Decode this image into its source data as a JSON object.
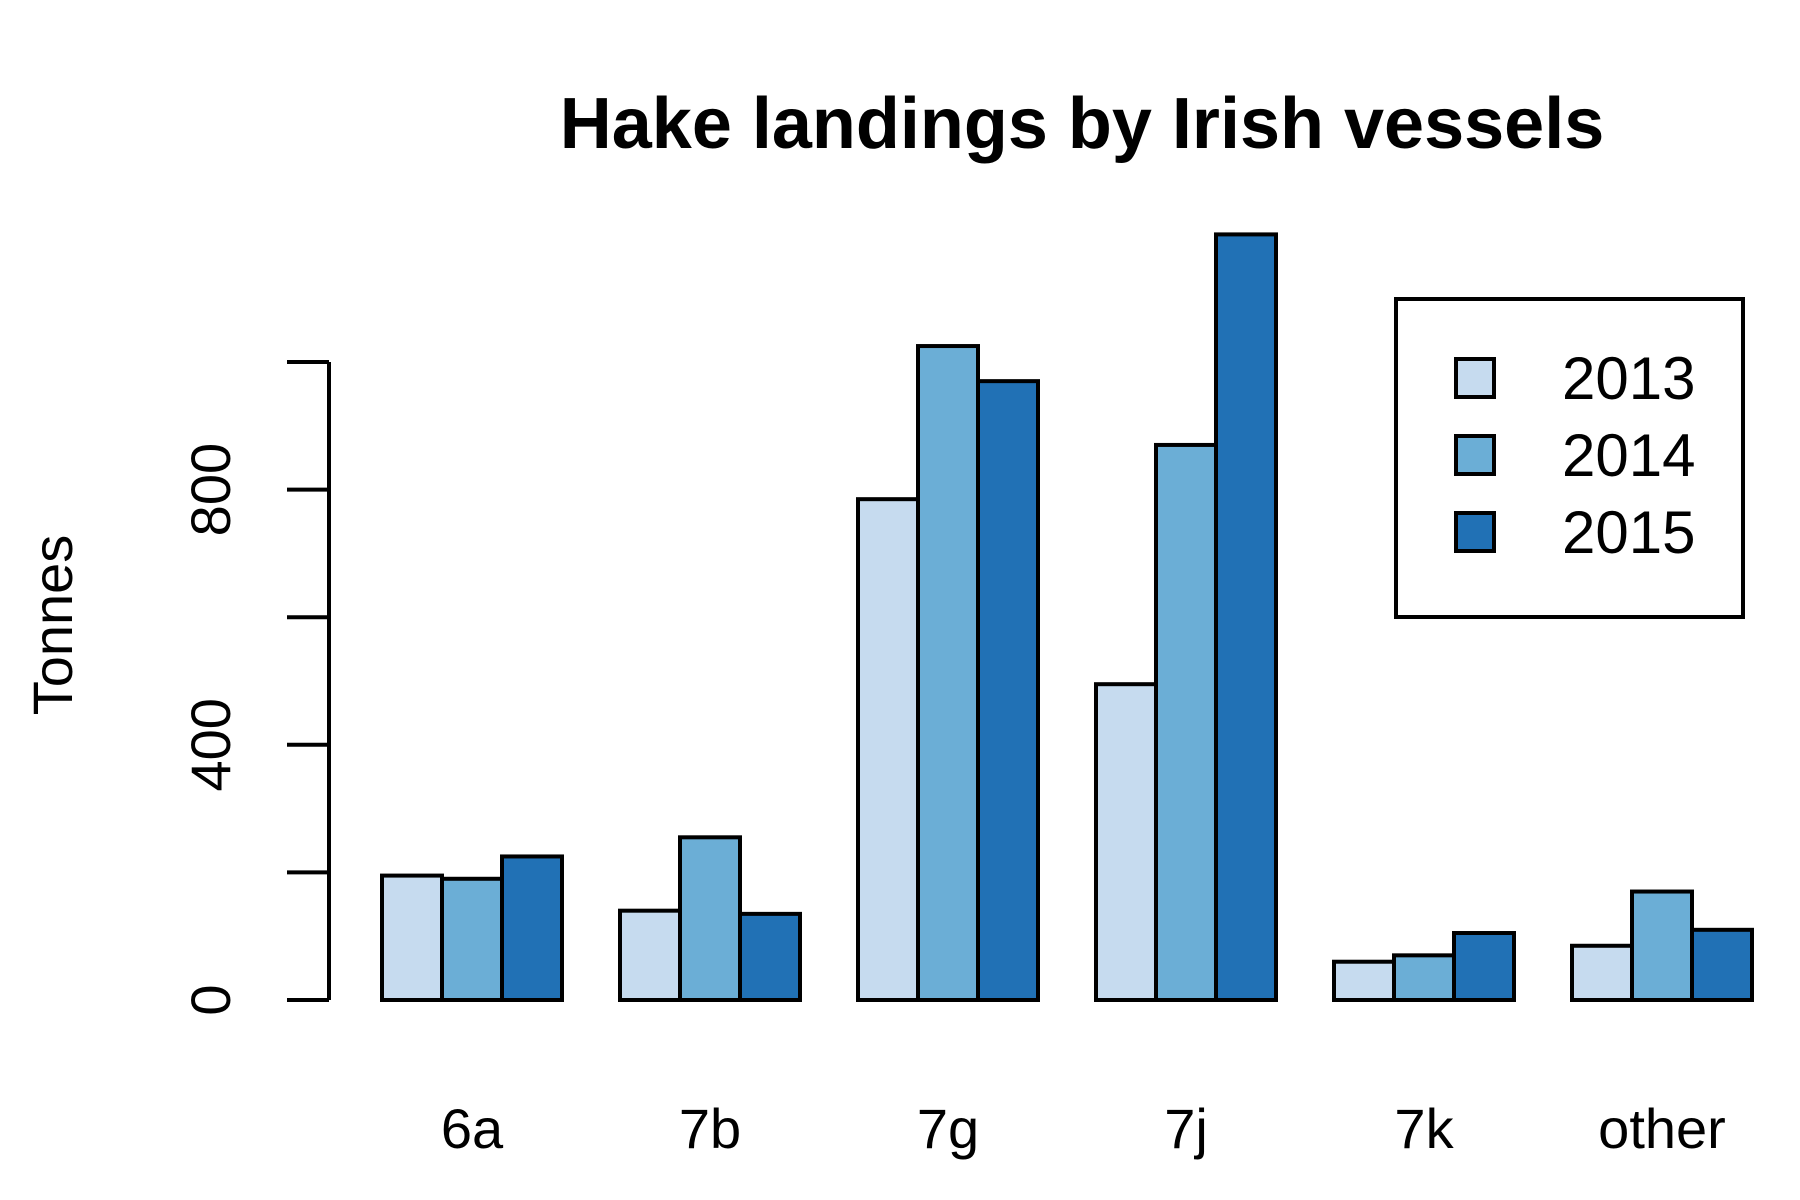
{
  "chart_data": {
    "type": "bar",
    "title": "Hake landings by Irish vessels",
    "xlabel": "",
    "ylabel": "Tonnes",
    "categories": [
      "6a",
      "7b",
      "7g",
      "7j",
      "7k",
      "other"
    ],
    "series": [
      {
        "name": "2013",
        "color": "#c6dbef",
        "values": [
          195,
          140,
          785,
          495,
          60,
          85
        ]
      },
      {
        "name": "2014",
        "color": "#6baed6",
        "values": [
          190,
          255,
          1025,
          870,
          70,
          170
        ]
      },
      {
        "name": "2015",
        "color": "#2171b5",
        "values": [
          225,
          135,
          970,
          1200,
          105,
          110
        ]
      }
    ],
    "y_ticks": [
      0,
      200,
      400,
      600,
      800,
      1000
    ],
    "y_tick_labels": [
      "0",
      "",
      "400",
      "",
      "800",
      ""
    ],
    "ylim": [
      0,
      1200
    ],
    "legend_position": "top-right",
    "grid": false
  }
}
